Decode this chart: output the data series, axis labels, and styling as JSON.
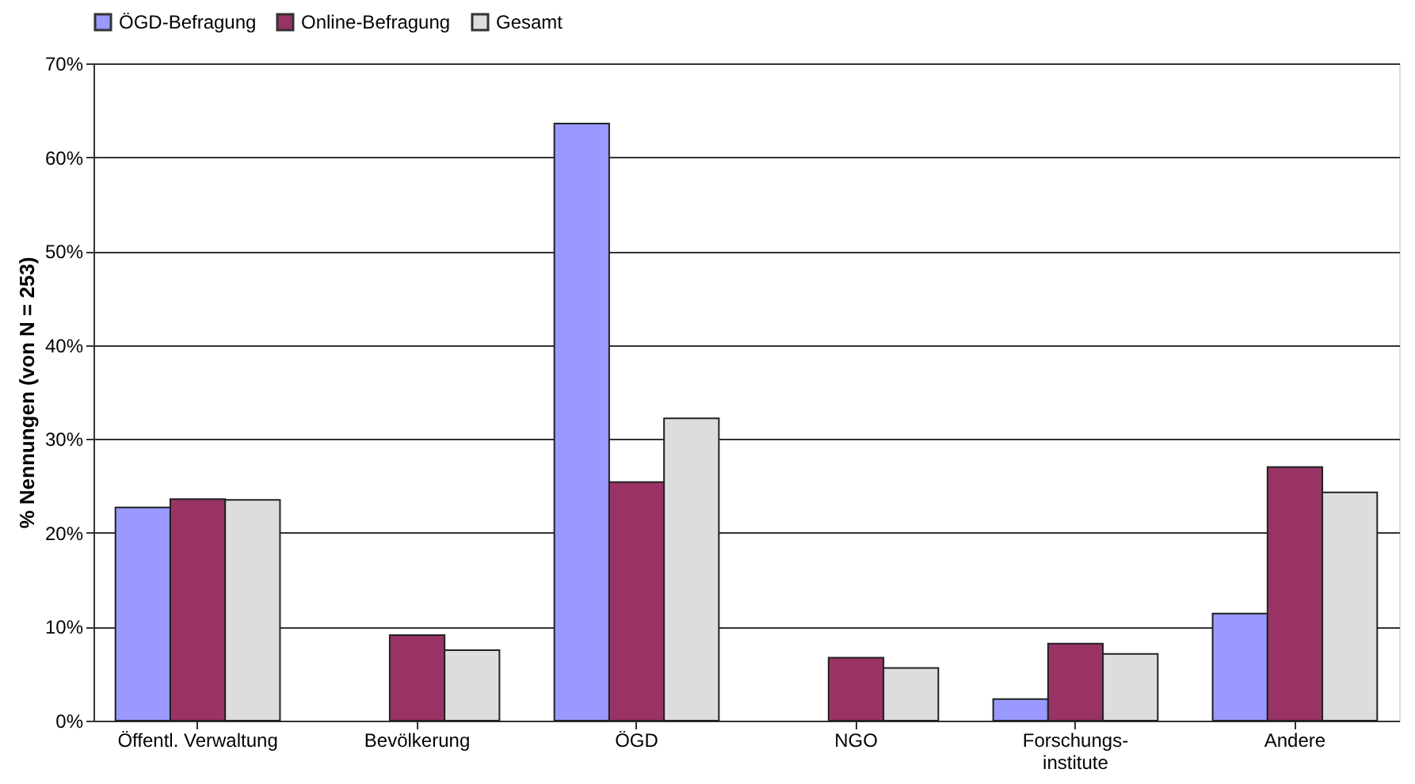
{
  "chart_data": {
    "type": "bar",
    "ylabel": "% Nennungen (von N = 253)",
    "categories": [
      "Öffentl. Verwaltung",
      "Bevölkerung",
      "ÖGD",
      "NGO",
      "Forschungs-\ninstitute",
      "Andere"
    ],
    "series": [
      {
        "name": "ÖGD-Befragung",
        "color": "#9999ff",
        "values": [
          22.7,
          null,
          63.6,
          null,
          2.3,
          11.4
        ]
      },
      {
        "name": "Online-Befragung",
        "color": "#993366",
        "values": [
          23.6,
          9.1,
          25.4,
          6.7,
          8.2,
          27.0
        ]
      },
      {
        "name": "Gesamt",
        "color": "#dddddd",
        "values": [
          23.5,
          7.5,
          32.2,
          5.6,
          7.1,
          24.3
        ]
      }
    ],
    "ylim": [
      0,
      70
    ],
    "yticks": [
      {
        "value": 0,
        "label": "0%"
      },
      {
        "value": 10,
        "label": "10%"
      },
      {
        "value": 20,
        "label": "20%"
      },
      {
        "value": 30,
        "label": "30%"
      },
      {
        "value": 40,
        "label": "40%"
      },
      {
        "value": 50,
        "label": "50%"
      },
      {
        "value": 60,
        "label": "60%"
      },
      {
        "value": 70,
        "label": "70%"
      }
    ],
    "grid": "y",
    "legend": "top"
  }
}
